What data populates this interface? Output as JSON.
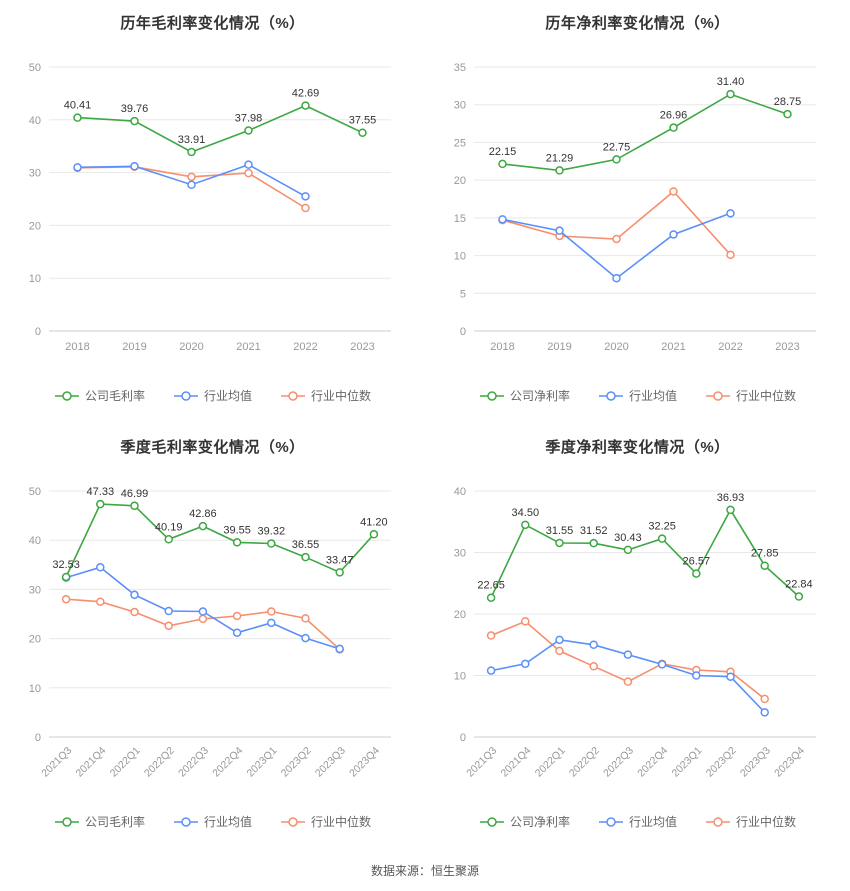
{
  "footer": {
    "source": "数据来源：恒生聚源"
  },
  "colors": {
    "company": "#3da742",
    "industry_mean": "#5b8ff9",
    "industry_median": "#f78e6d",
    "axis_label": "#999999",
    "data_label": "#333333",
    "grid_line": "#e8e8e8",
    "axis_line": "#cccccc",
    "title": "#333333"
  },
  "chart_data": [
    {
      "type": "line",
      "title": "历年毛利率变化情况（%）",
      "categories": [
        "2018",
        "2019",
        "2020",
        "2021",
        "2022",
        "2023"
      ],
      "ylim": [
        0,
        50
      ],
      "yticks": [
        0,
        10,
        20,
        30,
        40,
        50
      ],
      "rotate_x_labels": false,
      "grid": true,
      "legend_position": "bottom",
      "series": [
        {
          "name": "公司毛利率",
          "color_key": "company",
          "show_labels": true,
          "values": [
            40.41,
            39.76,
            33.91,
            37.98,
            42.69,
            37.55
          ]
        },
        {
          "name": "行业均值",
          "color_key": "industry_mean",
          "show_labels": false,
          "values": [
            31.0,
            31.2,
            27.7,
            31.5,
            25.5,
            null
          ]
        },
        {
          "name": "行业中位数",
          "color_key": "industry_median",
          "show_labels": false,
          "values": [
            30.9,
            31.1,
            29.2,
            29.9,
            23.3,
            null
          ]
        }
      ]
    },
    {
      "type": "line",
      "title": "历年净利率变化情况（%）",
      "categories": [
        "2018",
        "2019",
        "2020",
        "2021",
        "2022",
        "2023"
      ],
      "ylim": [
        0,
        35
      ],
      "yticks": [
        0,
        5,
        10,
        15,
        20,
        25,
        30,
        35
      ],
      "rotate_x_labels": false,
      "grid": true,
      "legend_position": "bottom",
      "series": [
        {
          "name": "公司净利率",
          "color_key": "company",
          "show_labels": true,
          "values": [
            22.15,
            21.29,
            22.75,
            26.96,
            31.4,
            28.75
          ]
        },
        {
          "name": "行业均值",
          "color_key": "industry_mean",
          "show_labels": false,
          "values": [
            14.8,
            13.3,
            7.0,
            12.8,
            15.6,
            null
          ]
        },
        {
          "name": "行业中位数",
          "color_key": "industry_median",
          "show_labels": false,
          "values": [
            14.7,
            12.6,
            12.2,
            18.5,
            10.1,
            null
          ]
        }
      ]
    },
    {
      "type": "line",
      "title": "季度毛利率变化情况（%）",
      "categories": [
        "2021Q3",
        "2021Q4",
        "2022Q1",
        "2022Q2",
        "2022Q3",
        "2022Q4",
        "2023Q1",
        "2023Q2",
        "2023Q3",
        "2023Q4"
      ],
      "ylim": [
        0,
        50
      ],
      "yticks": [
        0,
        10,
        20,
        30,
        40,
        50
      ],
      "rotate_x_labels": true,
      "grid": true,
      "legend_position": "bottom",
      "series": [
        {
          "name": "公司毛利率",
          "color_key": "company",
          "show_labels": true,
          "values": [
            32.53,
            47.33,
            46.99,
            40.19,
            42.86,
            39.55,
            39.32,
            36.55,
            33.47,
            41.2
          ]
        },
        {
          "name": "行业均值",
          "color_key": "industry_mean",
          "show_labels": false,
          "values": [
            32.4,
            34.5,
            28.9,
            25.6,
            25.5,
            21.2,
            23.2,
            20.1,
            17.9,
            null
          ]
        },
        {
          "name": "行业中位数",
          "color_key": "industry_median",
          "show_labels": false,
          "values": [
            28.0,
            27.5,
            25.4,
            22.6,
            24.0,
            24.6,
            25.5,
            24.1,
            17.8,
            null
          ]
        }
      ]
    },
    {
      "type": "line",
      "title": "季度净利率变化情况（%）",
      "categories": [
        "2021Q3",
        "2021Q4",
        "2022Q1",
        "2022Q2",
        "2022Q3",
        "2022Q4",
        "2023Q1",
        "2023Q2",
        "2023Q3",
        "2023Q4"
      ],
      "ylim": [
        0,
        40
      ],
      "yticks": [
        0,
        10,
        20,
        30,
        40
      ],
      "rotate_x_labels": true,
      "grid": true,
      "legend_position": "bottom",
      "series": [
        {
          "name": "公司净利率",
          "color_key": "company",
          "show_labels": true,
          "values": [
            22.65,
            34.5,
            31.55,
            31.52,
            30.43,
            32.25,
            26.57,
            36.93,
            27.85,
            22.84
          ]
        },
        {
          "name": "行业均值",
          "color_key": "industry_mean",
          "show_labels": false,
          "values": [
            10.8,
            11.9,
            15.8,
            15.0,
            13.4,
            11.8,
            10.0,
            9.8,
            4.0,
            null
          ]
        },
        {
          "name": "行业中位数",
          "color_key": "industry_median",
          "show_labels": false,
          "values": [
            16.5,
            18.8,
            14.0,
            11.5,
            9.0,
            11.9,
            10.9,
            10.6,
            6.2,
            null
          ]
        }
      ]
    }
  ]
}
